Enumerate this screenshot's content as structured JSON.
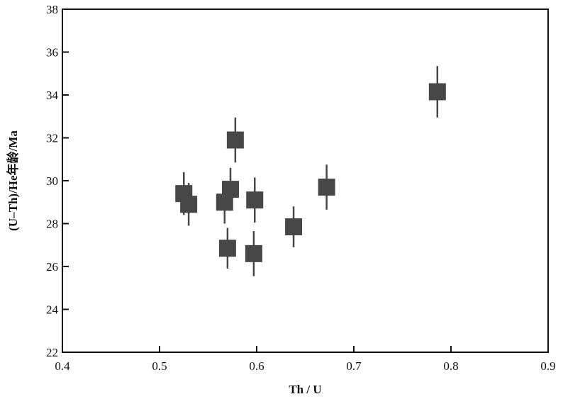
{
  "chart_data": {
    "type": "scatter",
    "xlabel": "Th / U",
    "ylabel": "(U–Th)/He年龄/Ma",
    "xlim": [
      0.4,
      0.9
    ],
    "ylim": [
      22,
      38
    ],
    "xticks": [
      "0.4",
      "0.5",
      "0.6",
      "0.7",
      "0.8",
      "0.9"
    ],
    "yticks": [
      "22",
      "24",
      "26",
      "28",
      "30",
      "32",
      "34",
      "36",
      "38"
    ],
    "grid": false,
    "marker": "square",
    "marker_color": "#474747",
    "points": [
      {
        "x": 0.525,
        "y": 29.4,
        "err": 1.0
      },
      {
        "x": 0.53,
        "y": 28.9,
        "err": 1.0
      },
      {
        "x": 0.567,
        "y": 29.0,
        "err": 1.0
      },
      {
        "x": 0.573,
        "y": 29.6,
        "err": 1.0
      },
      {
        "x": 0.57,
        "y": 26.85,
        "err": 0.95
      },
      {
        "x": 0.578,
        "y": 31.9,
        "err": 1.05
      },
      {
        "x": 0.598,
        "y": 29.1,
        "err": 1.05
      },
      {
        "x": 0.597,
        "y": 26.6,
        "err": 1.05
      },
      {
        "x": 0.638,
        "y": 27.85,
        "err": 0.95
      },
      {
        "x": 0.672,
        "y": 29.7,
        "err": 1.05
      },
      {
        "x": 0.786,
        "y": 34.15,
        "err": 1.2
      }
    ]
  }
}
